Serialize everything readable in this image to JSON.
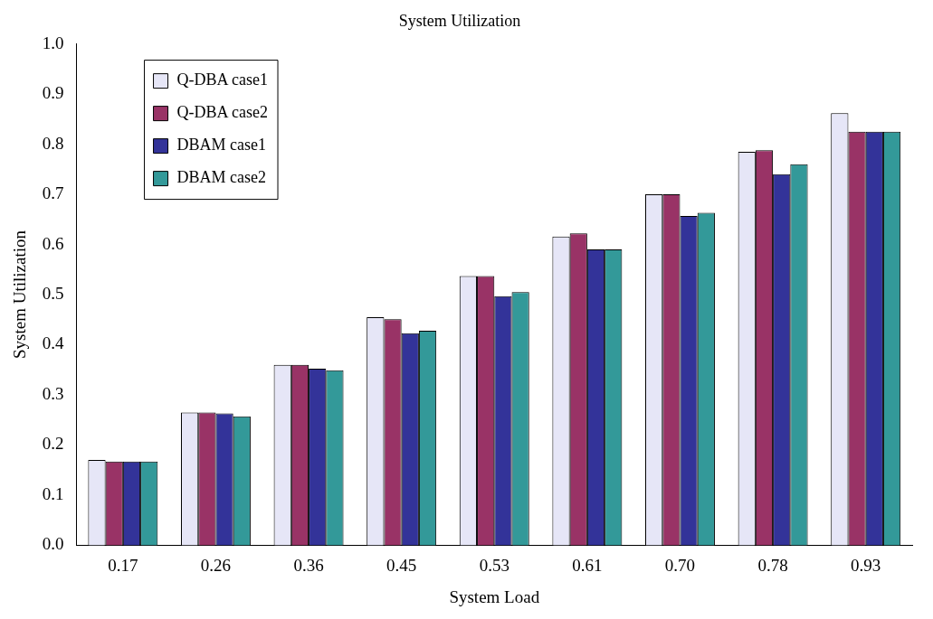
{
  "chart_data": {
    "type": "bar",
    "title": "System Utilization",
    "xlabel": "System Load",
    "ylabel": "System Utilization",
    "categories": [
      "0.17",
      "0.26",
      "0.36",
      "0.45",
      "0.53",
      "0.61",
      "0.70",
      "0.78",
      "0.93"
    ],
    "series": [
      {
        "name": "Q-DBA case1",
        "color": "#e6e6f7",
        "values": [
          0.17,
          0.265,
          0.36,
          0.455,
          0.537,
          0.616,
          0.7,
          0.785,
          0.862
        ]
      },
      {
        "name": "Q-DBA case2",
        "color": "#993366",
        "values": [
          0.167,
          0.265,
          0.36,
          0.451,
          0.537,
          0.622,
          0.7,
          0.788,
          0.825
        ]
      },
      {
        "name": "DBAM case1",
        "color": "#333399",
        "values": [
          0.167,
          0.263,
          0.352,
          0.423,
          0.497,
          0.59,
          0.657,
          0.74,
          0.825
        ]
      },
      {
        "name": "DBAM case2",
        "color": "#339999",
        "values": [
          0.167,
          0.257,
          0.349,
          0.428,
          0.505,
          0.59,
          0.663,
          0.76,
          0.825
        ]
      }
    ],
    "ylim": [
      0,
      1
    ],
    "yticks": [
      {
        "value": 0,
        "label": "0.0"
      },
      {
        "value": 0.1,
        "label": "0.1"
      },
      {
        "value": 0.2,
        "label": "0.2"
      },
      {
        "value": 0.3,
        "label": "0.3"
      },
      {
        "value": 0.4,
        "label": "0.4"
      },
      {
        "value": 0.5,
        "label": "0.5"
      },
      {
        "value": 0.6,
        "label": "0.6"
      },
      {
        "value": 0.7,
        "label": "0.7"
      },
      {
        "value": 0.8,
        "label": "0.8"
      },
      {
        "value": 0.9,
        "label": "0.9"
      },
      {
        "value": 1,
        "label": "1.0"
      }
    ],
    "grid": false,
    "legend": "top left"
  }
}
